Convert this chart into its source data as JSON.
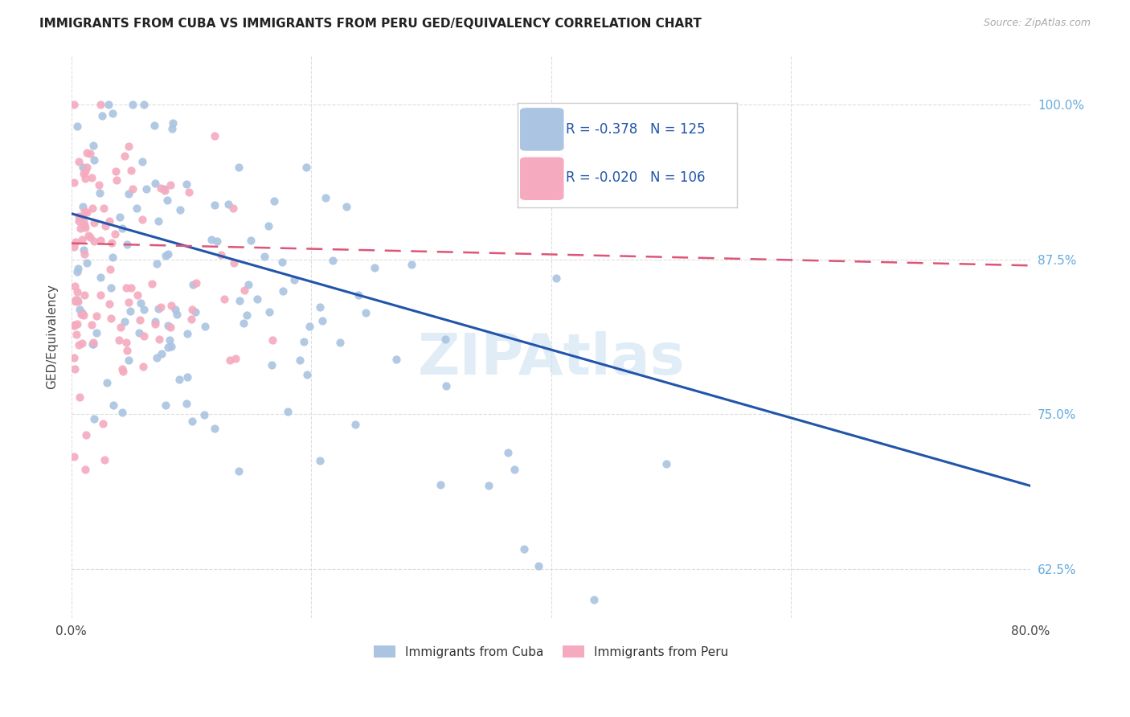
{
  "title": "IMMIGRANTS FROM CUBA VS IMMIGRANTS FROM PERU GED/EQUIVALENCY CORRELATION CHART",
  "source": "Source: ZipAtlas.com",
  "ylabel": "GED/Equivalency",
  "yticks": [
    0.625,
    0.75,
    0.875,
    1.0
  ],
  "ytick_labels": [
    "62.5%",
    "75.0%",
    "87.5%",
    "100.0%"
  ],
  "xlim": [
    0.0,
    0.8
  ],
  "ylim": [
    0.585,
    1.04
  ],
  "legend_R_cuba": "-0.378",
  "legend_N_cuba": "125",
  "legend_R_peru": "-0.020",
  "legend_N_peru": "106",
  "cuba_color": "#aac4e2",
  "peru_color": "#f5aabf",
  "cuba_line_color": "#2255aa",
  "peru_line_color": "#dd5577",
  "background_color": "#ffffff",
  "grid_color": "#dddddd",
  "watermark_color": "#c8dff0",
  "cuba_line_x0": 0.0,
  "cuba_line_y0": 0.912,
  "cuba_line_x1": 0.8,
  "cuba_line_y1": 0.692,
  "peru_line_x0": 0.0,
  "peru_line_y0": 0.888,
  "peru_line_x1": 0.8,
  "peru_line_y1": 0.87
}
